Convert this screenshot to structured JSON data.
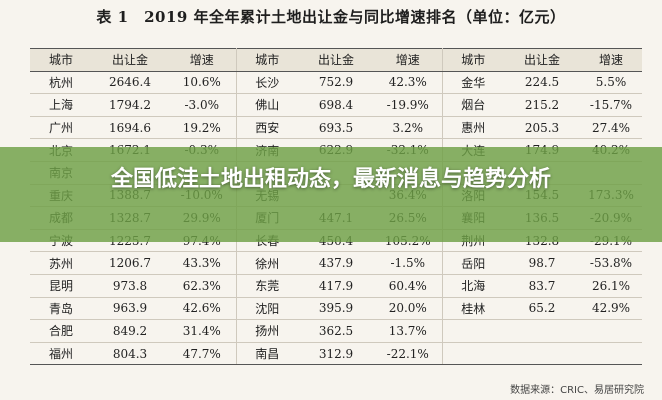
{
  "caption": "表 1　2019 年全年累计土地出让金与同比增速排名（单位：亿元）",
  "headers": [
    "城市",
    "出让金",
    "增速",
    "城市",
    "出让金",
    "增速",
    "城市",
    "出让金",
    "增速"
  ],
  "rows": [
    [
      "杭州",
      "2646.4",
      "10.6%",
      "长沙",
      "752.9",
      "42.3%",
      "金华",
      "224.5",
      "5.5%"
    ],
    [
      "上海",
      "1794.2",
      "-3.0%",
      "佛山",
      "698.4",
      "-19.9%",
      "烟台",
      "215.2",
      "-15.7%"
    ],
    [
      "广州",
      "1694.6",
      "19.2%",
      "西安",
      "693.5",
      "3.2%",
      "惠州",
      "205.3",
      "27.4%"
    ],
    [
      "北京",
      "1672.1",
      "-0.3%",
      "济南",
      "622.9",
      "-32.1%",
      "大连",
      "174.9",
      "40.2%"
    ],
    [
      "南京",
      "",
      "",
      "",
      "",
      "",
      "",
      "",
      ""
    ],
    [
      "重庆",
      "1388.7",
      "-10.0%",
      "无锡",
      "",
      "36.4%",
      "洛阳",
      "154.5",
      "173.3%"
    ],
    [
      "成都",
      "1328.7",
      "29.9%",
      "厦门",
      "447.1",
      "26.5%",
      "襄阳",
      "136.5",
      "-20.9%"
    ],
    [
      "宁波",
      "1225.7",
      "97.4%",
      "长春",
      "450.4",
      "105.2%",
      "荆州",
      "132.8",
      "-29.1%"
    ],
    [
      "苏州",
      "1206.7",
      "43.3%",
      "徐州",
      "437.9",
      "-1.5%",
      "岳阳",
      "98.7",
      "-53.8%"
    ],
    [
      "昆明",
      "973.8",
      "62.3%",
      "东莞",
      "417.9",
      "60.4%",
      "北海",
      "83.7",
      "26.1%"
    ],
    [
      "青岛",
      "963.9",
      "42.6%",
      "沈阳",
      "395.9",
      "20.0%",
      "桂林",
      "65.2",
      "42.9%"
    ],
    [
      "合肥",
      "849.2",
      "31.4%",
      "扬州",
      "362.5",
      "13.7%",
      "",
      "",
      ""
    ],
    [
      "福州",
      "804.3",
      "47.7%",
      "南昌",
      "312.9",
      "-22.1%",
      "",
      "",
      ""
    ]
  ],
  "source": "数据来源：CRIC、易居研究院",
  "overlay_title": "全国低洼土地出租动态，最新消息与趋势分析",
  "colors": {
    "overlay": "#6ea046",
    "header_bg": "#e9e4d8"
  }
}
